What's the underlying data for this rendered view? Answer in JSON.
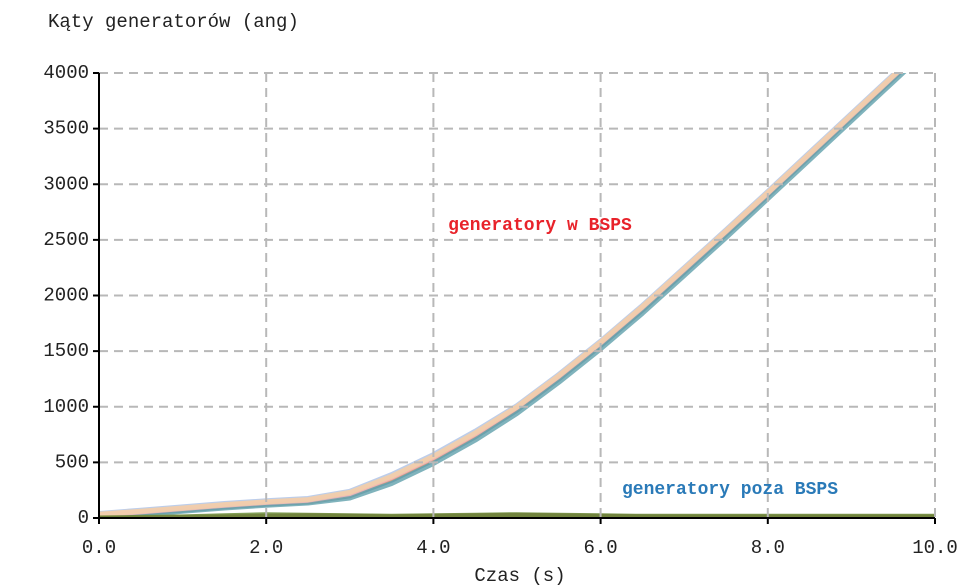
{
  "chart_data": {
    "type": "line",
    "title": "Kąty generatorów (ang)",
    "xlabel": "Czas (s)",
    "annotations": [
      {
        "text": "generatory w BSPS",
        "color": "#e8222a"
      },
      {
        "text": "generatory poza BSPS",
        "color": "#2a7ab8"
      }
    ],
    "x": [
      0,
      0.5,
      1,
      1.5,
      2,
      2.5,
      3,
      3.5,
      4,
      4.5,
      5,
      5.5,
      6,
      6.5,
      7,
      7.5,
      8,
      8.5,
      9,
      9.5,
      10
    ],
    "series": [
      {
        "color": "#4a6b8a",
        "values": [
          20,
          45,
          70,
          100,
          125,
          145,
          200,
          340,
          520,
          730,
          970,
          1250,
          1550,
          1870,
          2210,
          2550,
          2900,
          3250,
          3600,
          3950,
          4300
        ]
      },
      {
        "color": "#e8a070",
        "values": [
          25,
          50,
          80,
          110,
          135,
          150,
          210,
          355,
          535,
          745,
          985,
          1265,
          1565,
          1885,
          2225,
          2565,
          2910,
          3260,
          3610,
          3960,
          4310
        ]
      },
      {
        "color": "#6aa6b0",
        "values": [
          10,
          30,
          60,
          90,
          115,
          135,
          180,
          310,
          490,
          700,
          940,
          1220,
          1520,
          1840,
          2180,
          2520,
          2870,
          3220,
          3570,
          3920,
          4270
        ]
      },
      {
        "color": "#b0c4e8",
        "values": [
          40,
          70,
          100,
          130,
          155,
          175,
          240,
          390,
          570,
          780,
          1010,
          1290,
          1590,
          1910,
          2250,
          2590,
          2935,
          3285,
          3635,
          3985,
          4330
        ]
      },
      {
        "color": "#f4b6c2",
        "values": [
          30,
          55,
          85,
          115,
          140,
          160,
          220,
          365,
          545,
          755,
          995,
          1275,
          1575,
          1895,
          2235,
          2575,
          2920,
          3270,
          3620,
          3970,
          4320
        ]
      },
      {
        "color": "#f2d0a8",
        "values": [
          35,
          60,
          90,
          120,
          145,
          165,
          230,
          375,
          555,
          765,
          1000,
          1280,
          1580,
          1900,
          2240,
          2580,
          2925,
          3275,
          3625,
          3975,
          4325
        ]
      },
      {
        "color": "#2a5f9e",
        "values": [
          0,
          0,
          0,
          5,
          10,
          15,
          10,
          5,
          10,
          15,
          20,
          15,
          10,
          10,
          5,
          5,
          5,
          5,
          5,
          5,
          5
        ]
      },
      {
        "color": "#a04040",
        "values": [
          0,
          0,
          5,
          10,
          15,
          20,
          15,
          10,
          15,
          20,
          25,
          20,
          15,
          10,
          10,
          10,
          10,
          10,
          10,
          10,
          10
        ]
      },
      {
        "color": "#6b8e3a",
        "values": [
          0,
          5,
          10,
          20,
          30,
          25,
          20,
          15,
          20,
          25,
          30,
          25,
          20,
          15,
          15,
          15,
          15,
          15,
          15,
          15,
          15
        ]
      }
    ],
    "xlim": [
      0,
      10
    ],
    "xticks": [
      {
        "value": 0,
        "label": "0.0"
      },
      {
        "value": 2,
        "label": "2.0"
      },
      {
        "value": 4,
        "label": "4.0"
      },
      {
        "value": 6,
        "label": "6.0"
      },
      {
        "value": 8,
        "label": "8.0"
      },
      {
        "value": 10,
        "label": "10.0"
      }
    ],
    "ylim": [
      0,
      4000
    ],
    "yticks": [
      0,
      500,
      1000,
      1500,
      2000,
      2500,
      3000,
      3500,
      4000
    ],
    "grid": true
  }
}
